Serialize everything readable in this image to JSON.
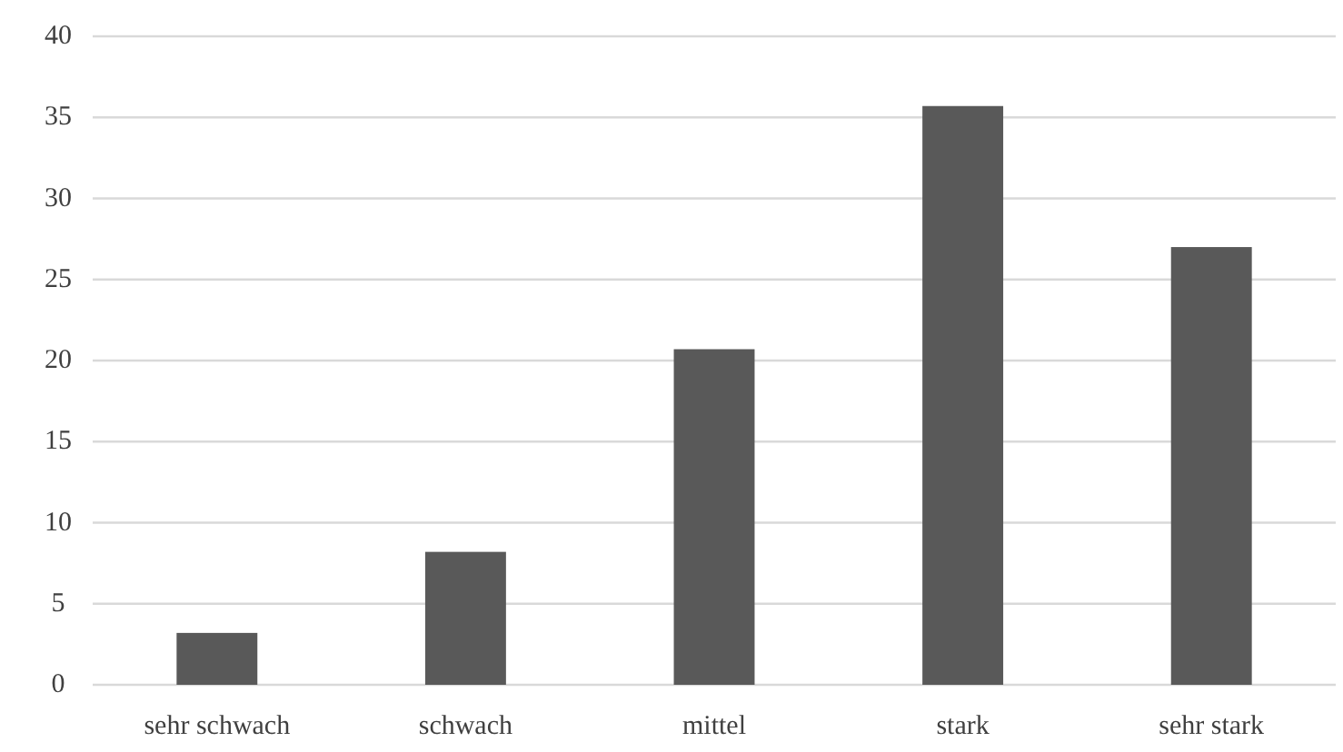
{
  "chart_data": {
    "type": "bar",
    "categories": [
      "sehr schwach",
      "schwach",
      "mittel",
      "stark",
      "sehr stark"
    ],
    "values": [
      3.2,
      8.2,
      20.7,
      35.7,
      27.0
    ],
    "color": "#595959",
    "ylim": [
      0,
      40
    ],
    "yticks": [
      0,
      5,
      10,
      15,
      20,
      25,
      30,
      35,
      40
    ],
    "grid": "y"
  }
}
